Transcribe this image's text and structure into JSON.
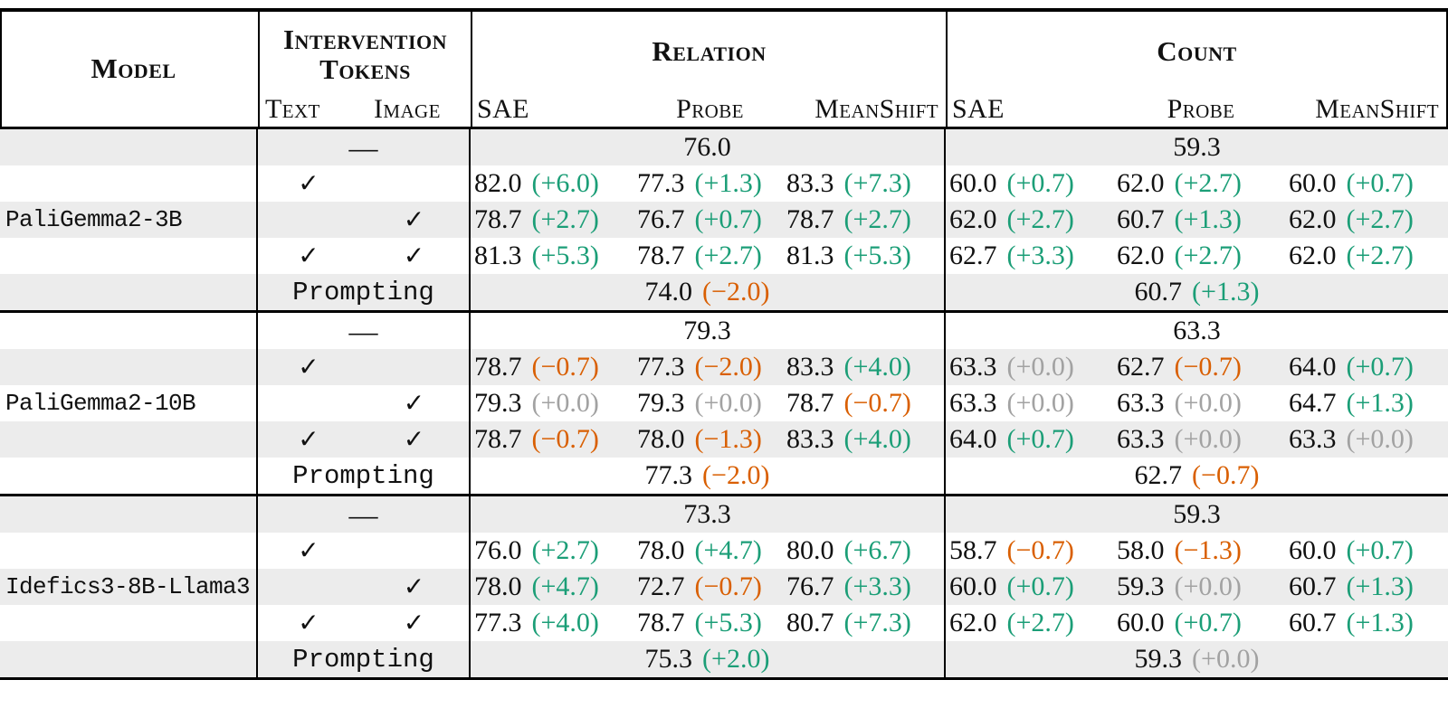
{
  "header": {
    "model_label": "Model",
    "tokens_label": "Intervention Tokens",
    "text_label": "Text",
    "image_label": "Image",
    "relation_label": "Relation",
    "count_label": "Count",
    "method_labels": [
      "SAE",
      "Probe",
      "MeanShift"
    ]
  },
  "symbols": {
    "check": "✓",
    "none_dash": "—"
  },
  "prompting_label": "Prompting",
  "colors": {
    "positive": "#1b9e77",
    "negative": "#d95f02",
    "neutral": "#a2a2a2",
    "stripe": "#ececec",
    "border": "#000000",
    "text": "#111111"
  },
  "models": [
    {
      "name": "PaliGemma2-3B",
      "baseline": {
        "relation": "76.0",
        "count": "59.3"
      },
      "interventions": [
        {
          "text": true,
          "image": false,
          "relation": [
            [
              "82.0",
              "+6.0",
              "pos"
            ],
            [
              "77.3",
              "+1.3",
              "pos"
            ],
            [
              "83.3",
              "+7.3",
              "pos"
            ]
          ],
          "count": [
            [
              "60.0",
              "+0.7",
              "pos"
            ],
            [
              "62.0",
              "+2.7",
              "pos"
            ],
            [
              "60.0",
              "+0.7",
              "pos"
            ]
          ]
        },
        {
          "text": false,
          "image": true,
          "relation": [
            [
              "78.7",
              "+2.7",
              "pos"
            ],
            [
              "76.7",
              "+0.7",
              "pos"
            ],
            [
              "78.7",
              "+2.7",
              "pos"
            ]
          ],
          "count": [
            [
              "62.0",
              "+2.7",
              "pos"
            ],
            [
              "60.7",
              "+1.3",
              "pos"
            ],
            [
              "62.0",
              "+2.7",
              "pos"
            ]
          ]
        },
        {
          "text": true,
          "image": true,
          "relation": [
            [
              "81.3",
              "+5.3",
              "pos"
            ],
            [
              "78.7",
              "+2.7",
              "pos"
            ],
            [
              "81.3",
              "+5.3",
              "pos"
            ]
          ],
          "count": [
            [
              "62.7",
              "+3.3",
              "pos"
            ],
            [
              "62.0",
              "+2.7",
              "pos"
            ],
            [
              "62.0",
              "+2.7",
              "pos"
            ]
          ]
        }
      ],
      "prompting": {
        "relation": [
          "74.0",
          "−2.0",
          "neg"
        ],
        "count": [
          "60.7",
          "+1.3",
          "pos"
        ]
      }
    },
    {
      "name": "PaliGemma2-10B",
      "baseline": {
        "relation": "79.3",
        "count": "63.3"
      },
      "interventions": [
        {
          "text": true,
          "image": false,
          "relation": [
            [
              "78.7",
              "−0.7",
              "neg"
            ],
            [
              "77.3",
              "−2.0",
              "neg"
            ],
            [
              "83.3",
              "+4.0",
              "pos"
            ]
          ],
          "count": [
            [
              "63.3",
              "+0.0",
              "zero"
            ],
            [
              "62.7",
              "−0.7",
              "neg"
            ],
            [
              "64.0",
              "+0.7",
              "pos"
            ]
          ]
        },
        {
          "text": false,
          "image": true,
          "relation": [
            [
              "79.3",
              "+0.0",
              "zero"
            ],
            [
              "79.3",
              "+0.0",
              "zero"
            ],
            [
              "78.7",
              "−0.7",
              "neg"
            ]
          ],
          "count": [
            [
              "63.3",
              "+0.0",
              "zero"
            ],
            [
              "63.3",
              "+0.0",
              "zero"
            ],
            [
              "64.7",
              "+1.3",
              "pos"
            ]
          ]
        },
        {
          "text": true,
          "image": true,
          "relation": [
            [
              "78.7",
              "−0.7",
              "neg"
            ],
            [
              "78.0",
              "−1.3",
              "neg"
            ],
            [
              "83.3",
              "+4.0",
              "pos"
            ]
          ],
          "count": [
            [
              "64.0",
              "+0.7",
              "pos"
            ],
            [
              "63.3",
              "+0.0",
              "zero"
            ],
            [
              "63.3",
              "+0.0",
              "zero"
            ]
          ]
        }
      ],
      "prompting": {
        "relation": [
          "77.3",
          "−2.0",
          "neg"
        ],
        "count": [
          "62.7",
          "−0.7",
          "neg"
        ]
      }
    },
    {
      "name": "Idefics3-8B-Llama3",
      "baseline": {
        "relation": "73.3",
        "count": "59.3"
      },
      "interventions": [
        {
          "text": true,
          "image": false,
          "relation": [
            [
              "76.0",
              "+2.7",
              "pos"
            ],
            [
              "78.0",
              "+4.7",
              "pos"
            ],
            [
              "80.0",
              "+6.7",
              "pos"
            ]
          ],
          "count": [
            [
              "58.7",
              "−0.7",
              "neg"
            ],
            [
              "58.0",
              "−1.3",
              "neg"
            ],
            [
              "60.0",
              "+0.7",
              "pos"
            ]
          ]
        },
        {
          "text": false,
          "image": true,
          "relation": [
            [
              "78.0",
              "+4.7",
              "pos"
            ],
            [
              "72.7",
              "−0.7",
              "neg"
            ],
            [
              "76.7",
              "+3.3",
              "pos"
            ]
          ],
          "count": [
            [
              "60.0",
              "+0.7",
              "pos"
            ],
            [
              "59.3",
              "+0.0",
              "zero"
            ],
            [
              "60.7",
              "+1.3",
              "pos"
            ]
          ]
        },
        {
          "text": true,
          "image": true,
          "relation": [
            [
              "77.3",
              "+4.0",
              "pos"
            ],
            [
              "78.7",
              "+5.3",
              "pos"
            ],
            [
              "80.7",
              "+7.3",
              "pos"
            ]
          ],
          "count": [
            [
              "62.0",
              "+2.7",
              "pos"
            ],
            [
              "60.0",
              "+0.7",
              "pos"
            ],
            [
              "60.7",
              "+1.3",
              "pos"
            ]
          ]
        }
      ],
      "prompting": {
        "relation": [
          "75.3",
          "+2.0",
          "pos"
        ],
        "count": [
          "59.3",
          "+0.0",
          "zero"
        ]
      }
    }
  ]
}
